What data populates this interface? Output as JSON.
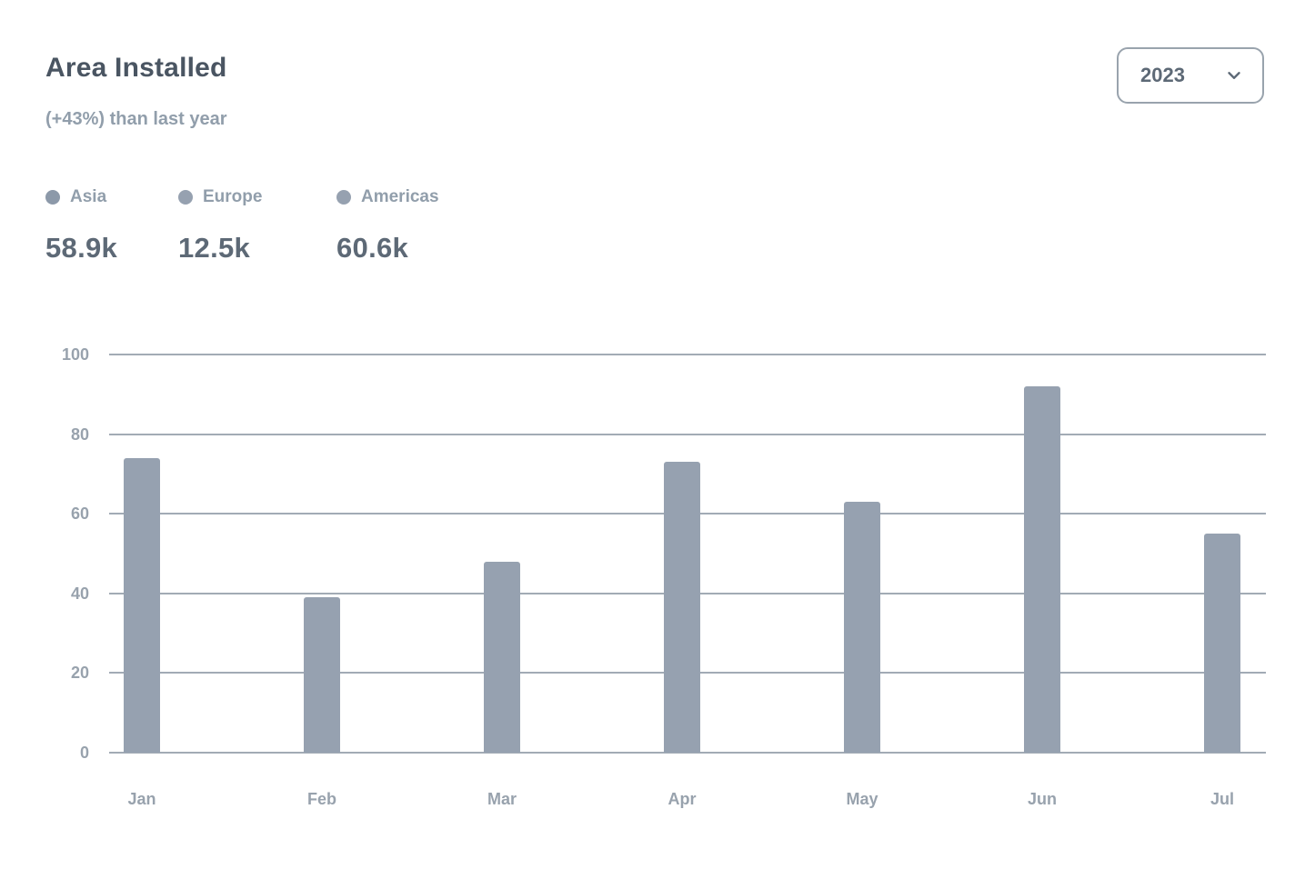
{
  "header": {
    "title": "Area Installed",
    "subtitle": "(+43%) than last year",
    "year_select": {
      "value": "2023",
      "icon": "chevron-down-icon"
    }
  },
  "legend": {
    "items": [
      {
        "label": "Asia",
        "value": "58.9k",
        "marker_color": "#8C99A9",
        "icon": "series-marker-icon"
      },
      {
        "label": "Europe",
        "value": "12.5k",
        "marker_color": "#96A1B0",
        "icon": "series-marker-icon"
      },
      {
        "label": "Americas",
        "value": "60.6k",
        "marker_color": "#96A1B0",
        "icon": "series-marker-icon"
      }
    ]
  },
  "chart_data": {
    "type": "bar",
    "title": "Area Installed",
    "subtitle": "(+43%) than last year",
    "categories": [
      "Jan",
      "Feb",
      "Mar",
      "Apr",
      "May",
      "Jun",
      "Jul"
    ],
    "values": [
      74,
      39,
      48,
      73,
      63,
      92,
      55
    ],
    "xlabel": "",
    "ylabel": "",
    "ylim": [
      0,
      100
    ],
    "yticks": [
      100,
      80,
      60,
      40,
      20,
      0
    ],
    "grid": true,
    "legend_position": "top-left",
    "legend_entries": [
      "Asia",
      "Europe",
      "Americas"
    ],
    "bar_color": "#96A1B0",
    "grid_color": "#A2ABB5",
    "tick_label_color": "#98A2AD"
  },
  "colors": {
    "card_background": "#FFFFFF",
    "title_text": "#4A5562",
    "muted_text": "#919EAB",
    "value_text": "#5D6976",
    "button_border": "#99A3AD"
  }
}
